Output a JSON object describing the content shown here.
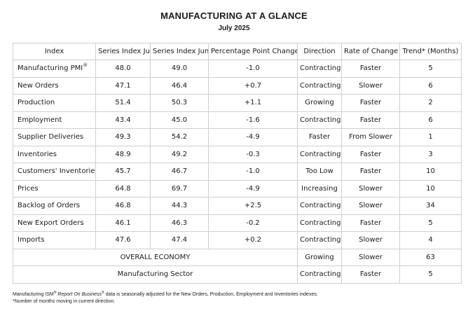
{
  "title": "MANUFACTURING AT A GLANCE",
  "subtitle": "July 2025",
  "columns": [
    "Index",
    "Series Index Jul",
    "Series Index Jun",
    "Percentage Point Change",
    "Direction",
    "Rate of Change",
    "Trend* (Months)"
  ],
  "rows": [
    {
      "index": "Manufacturing PMI",
      "sup": "®",
      "jul": "48.0",
      "jun": "49.0",
      "change": "-1.0",
      "direction": "Contracting",
      "rate": "Faster",
      "trend": "5"
    },
    {
      "index": "New Orders",
      "sup": "",
      "jul": "47.1",
      "jun": "46.4",
      "change": "+0.7",
      "direction": "Contracting",
      "rate": "Slower",
      "trend": "6"
    },
    {
      "index": "Production",
      "sup": "",
      "jul": "51.4",
      "jun": "50.3",
      "change": "+1.1",
      "direction": "Growing",
      "rate": "Faster",
      "trend": "2"
    },
    {
      "index": "Employment",
      "sup": "",
      "jul": "43.4",
      "jun": "45.0",
      "change": "-1.6",
      "direction": "Contracting",
      "rate": "Faster",
      "trend": "6"
    },
    {
      "index": "Supplier Deliveries",
      "sup": "",
      "jul": "49.3",
      "jun": "54.2",
      "change": "-4.9",
      "direction": "Faster",
      "rate": "From Slower",
      "trend": "1"
    },
    {
      "index": "Inventories",
      "sup": "",
      "jul": "48.9",
      "jun": "49.2",
      "change": "-0.3",
      "direction": "Contracting",
      "rate": "Faster",
      "trend": "3"
    },
    {
      "index": "Customers' Inventories",
      "sup": "",
      "jul": "45.7",
      "jun": "46.7",
      "change": "-1.0",
      "direction": "Too Low",
      "rate": "Faster",
      "trend": "10"
    },
    {
      "index": "Prices",
      "sup": "",
      "jul": "64.8",
      "jun": "69.7",
      "change": "-4.9",
      "direction": "Increasing",
      "rate": "Slower",
      "trend": "10"
    },
    {
      "index": "Backlog of Orders",
      "sup": "",
      "jul": "46.8",
      "jun": "44.3",
      "change": "+2.5",
      "direction": "Contracting",
      "rate": "Slower",
      "trend": "34"
    },
    {
      "index": "New Export Orders",
      "sup": "",
      "jul": "46.1",
      "jun": "46.3",
      "change": "-0.2",
      "direction": "Contracting",
      "rate": "Faster",
      "trend": "5"
    },
    {
      "index": "Imports",
      "sup": "",
      "jul": "47.6",
      "jun": "47.4",
      "change": "+0.2",
      "direction": "Contracting",
      "rate": "Slower",
      "trend": "4"
    }
  ],
  "summary_rows": [
    {
      "label": "OVERALL ECONOMY",
      "direction": "Growing",
      "rate": "Slower",
      "trend": "63"
    },
    {
      "label": "Manufacturing Sector",
      "direction": "Contracting",
      "rate": "Faster",
      "trend": "5"
    }
  ],
  "footnote": {
    "line1_a": "Manufacturing ISM",
    "line1_sup1": "®",
    "line1_italic": "Report On Business",
    "line1_sup2": "®",
    "line1_b": "data is seasonally adjusted for the New Orders, Production, Employment and Inventories indexes.",
    "line2": "*Number of months moving in current direction."
  }
}
